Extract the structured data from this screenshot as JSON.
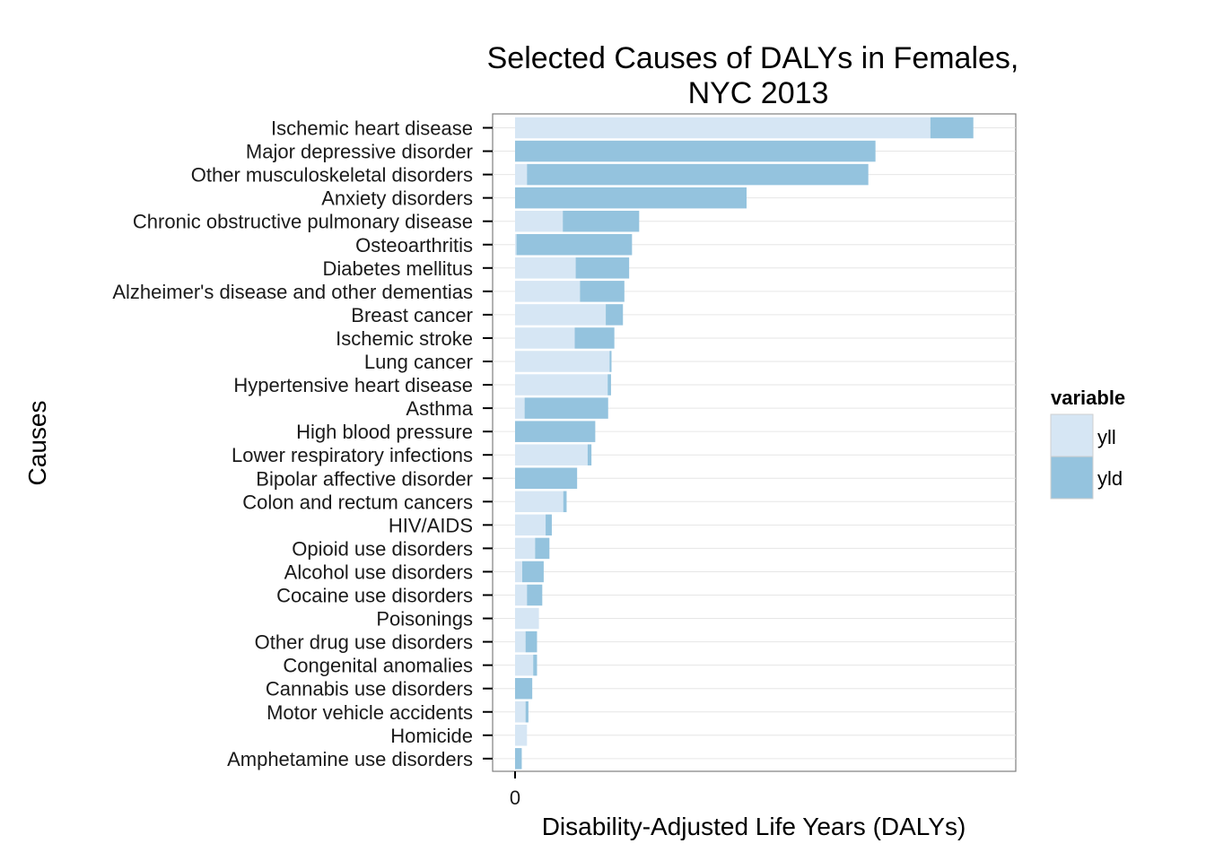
{
  "chart_data": {
    "type": "bar",
    "orientation": "horizontal",
    "stacked": true,
    "title_line1": "Selected Causes of DALYs in Females,",
    "title_line2": "NYC 2013",
    "xlabel": "Disability-Adjusted Life Years (DALYs)",
    "ylabel": "Causes",
    "x_ticks": [
      "0"
    ],
    "xlim": [
      0,
      1000
    ],
    "grid": true,
    "legend_position": "right",
    "legend_title": "variable",
    "categories": [
      "Ischemic heart disease",
      "Major depressive disorder",
      "Other musculoskeletal disorders",
      "Anxiety disorders",
      "Chronic obstructive pulmonary disease",
      "Osteoarthritis",
      "Diabetes mellitus",
      "Alzheimer's disease and other dementias",
      "Breast cancer",
      "Ischemic stroke",
      "Lung cancer",
      "Hypertensive heart disease",
      "Asthma",
      "High blood pressure",
      "Lower respiratory infections",
      "Bipolar affective disorder",
      "Colon and rectum cancers",
      "HIV/AIDS",
      "Opioid use disorders",
      "Alcohol use disorders",
      "Cocaine use disorders",
      "Poisonings",
      "Other drug use disorders",
      "Congenital anomalies",
      "Cannabis use disorders",
      "Motor vehicle accidents",
      "Homicide",
      "Amphetamine use disorders"
    ],
    "series": [
      {
        "name": "yll",
        "color": "#d6e6f4",
        "values": [
          870,
          0,
          25,
          0,
          100,
          3,
          127,
          136,
          190,
          125,
          198,
          194,
          20,
          0,
          152,
          0,
          101,
          64,
          42,
          15,
          25,
          50,
          22,
          38,
          0,
          22,
          25,
          0
        ]
      },
      {
        "name": "yld",
        "color": "#94c3de",
        "values": [
          90,
          755,
          715,
          485,
          160,
          242,
          112,
          93,
          36,
          83,
          4,
          7,
          175,
          168,
          8,
          130,
          7,
          13,
          30,
          45,
          32,
          0,
          24,
          8,
          36,
          6,
          0,
          14
        ]
      }
    ]
  }
}
